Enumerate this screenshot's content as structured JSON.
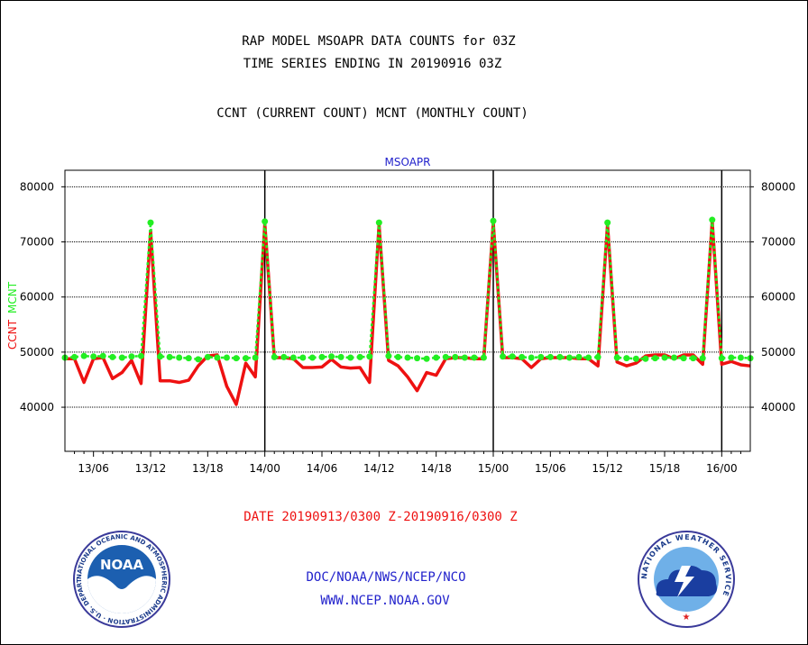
{
  "header": {
    "title_line1": "RAP MODEL MSOAPR DATA COUNTS for 03Z",
    "title_line2": "TIME SERIES ENDING IN 20190916 03Z",
    "subtitle": "CCNT (CURRENT COUNT) MCNT (MONTHLY COUNT)"
  },
  "footer": {
    "date_range": "DATE 20190913/0300 Z-20190916/0300 Z",
    "org": "DOC/NOAA/NWS/NCEP/NCO",
    "url": "WWW.NCEP.NOAA.GOV",
    "noaa_logo_text": "NOAA",
    "noaa_ring_text": "NATIONAL OCEANIC AND ATMOSPHERIC ADMINISTRATION · U.S. DEPARTMENT OF COMMERCE",
    "nws_ring_text": "NATIONAL WEATHER SERVICE"
  },
  "colors": {
    "ccnt": "#ee1111",
    "mcnt": "#22ee22",
    "chart_title": "#2222cc",
    "date_text": "#ee1111",
    "footer_text": "#2222cc"
  },
  "chart_data": {
    "type": "line",
    "title": "MSOAPR",
    "ylabel_parts": [
      {
        "text": "CCNT",
        "color": "#ee1111"
      },
      {
        "text": "MCNT",
        "color": "#22ee22"
      }
    ],
    "x": [
      3,
      4,
      5,
      6,
      7,
      8,
      9,
      10,
      11,
      12,
      13,
      14,
      15,
      16,
      17,
      18,
      19,
      20,
      21,
      22,
      23,
      24,
      25,
      26,
      27,
      28,
      29,
      30,
      31,
      32,
      33,
      34,
      35,
      36,
      37,
      38,
      39,
      40,
      41,
      42,
      43,
      44,
      45,
      46,
      47,
      48,
      49,
      50,
      51,
      52,
      53,
      54,
      55,
      56,
      57,
      58,
      59,
      60,
      61,
      62,
      63,
      64,
      65,
      66,
      67,
      68,
      69,
      70,
      71,
      72,
      73,
      74,
      75
    ],
    "xlim": [
      3,
      75
    ],
    "x_ticks": [
      6,
      12,
      18,
      24,
      30,
      36,
      42,
      48,
      54,
      60,
      66,
      72
    ],
    "x_tick_labels": [
      "13/06",
      "13/12",
      "13/18",
      "14/00",
      "14/06",
      "14/12",
      "14/18",
      "15/00",
      "15/06",
      "15/12",
      "15/18",
      "16/00"
    ],
    "day_lines": [
      24,
      48,
      72
    ],
    "ylim": [
      32000,
      83000
    ],
    "y_ticks": [
      40000,
      50000,
      60000,
      70000,
      80000
    ],
    "y_tick_labels": [
      "40000",
      "50000",
      "60000",
      "70000",
      "80000"
    ],
    "grid": true,
    "series": [
      {
        "name": "CCNT",
        "color": "#ee1111",
        "values": [
          48800,
          48800,
          44500,
          48800,
          49000,
          45200,
          46300,
          48500,
          44300,
          72000,
          44800,
          44800,
          44500,
          44900,
          47500,
          49300,
          49500,
          43800,
          40500,
          48000,
          45500,
          73300,
          49000,
          49000,
          48800,
          47200,
          47200,
          47300,
          48700,
          47300,
          47100,
          47200,
          44500,
          73200,
          48500,
          47500,
          45500,
          43000,
          46300,
          45800,
          48800,
          49000,
          49000,
          48800,
          48800,
          73500,
          49000,
          49000,
          48800,
          47200,
          48800,
          49000,
          49000,
          49000,
          48800,
          48800,
          47500,
          73200,
          48200,
          47500,
          48000,
          49300,
          49500,
          49500,
          48800,
          49500,
          49500,
          47800,
          73800,
          47800,
          48300,
          47700,
          47500
        ]
      },
      {
        "name": "MCNT",
        "color": "#22ee22",
        "values": [
          49000,
          49100,
          49300,
          49200,
          49300,
          49100,
          49000,
          49200,
          49300,
          73500,
          49200,
          49100,
          49000,
          48900,
          48700,
          49100,
          49000,
          49000,
          48900,
          48900,
          49000,
          73700,
          49100,
          49100,
          49000,
          49000,
          49000,
          49100,
          49200,
          49100,
          49000,
          49100,
          49200,
          73500,
          49300,
          49100,
          49000,
          48900,
          48800,
          49000,
          49100,
          49100,
          49000,
          49000,
          49000,
          73800,
          49200,
          49200,
          49100,
          49000,
          49100,
          49100,
          49100,
          49000,
          49100,
          49000,
          49100,
          73500,
          49000,
          48900,
          48800,
          48800,
          48900,
          49000,
          49000,
          48900,
          48900,
          48900,
          74000,
          48900,
          49000,
          49000,
          48900
        ]
      }
    ]
  }
}
